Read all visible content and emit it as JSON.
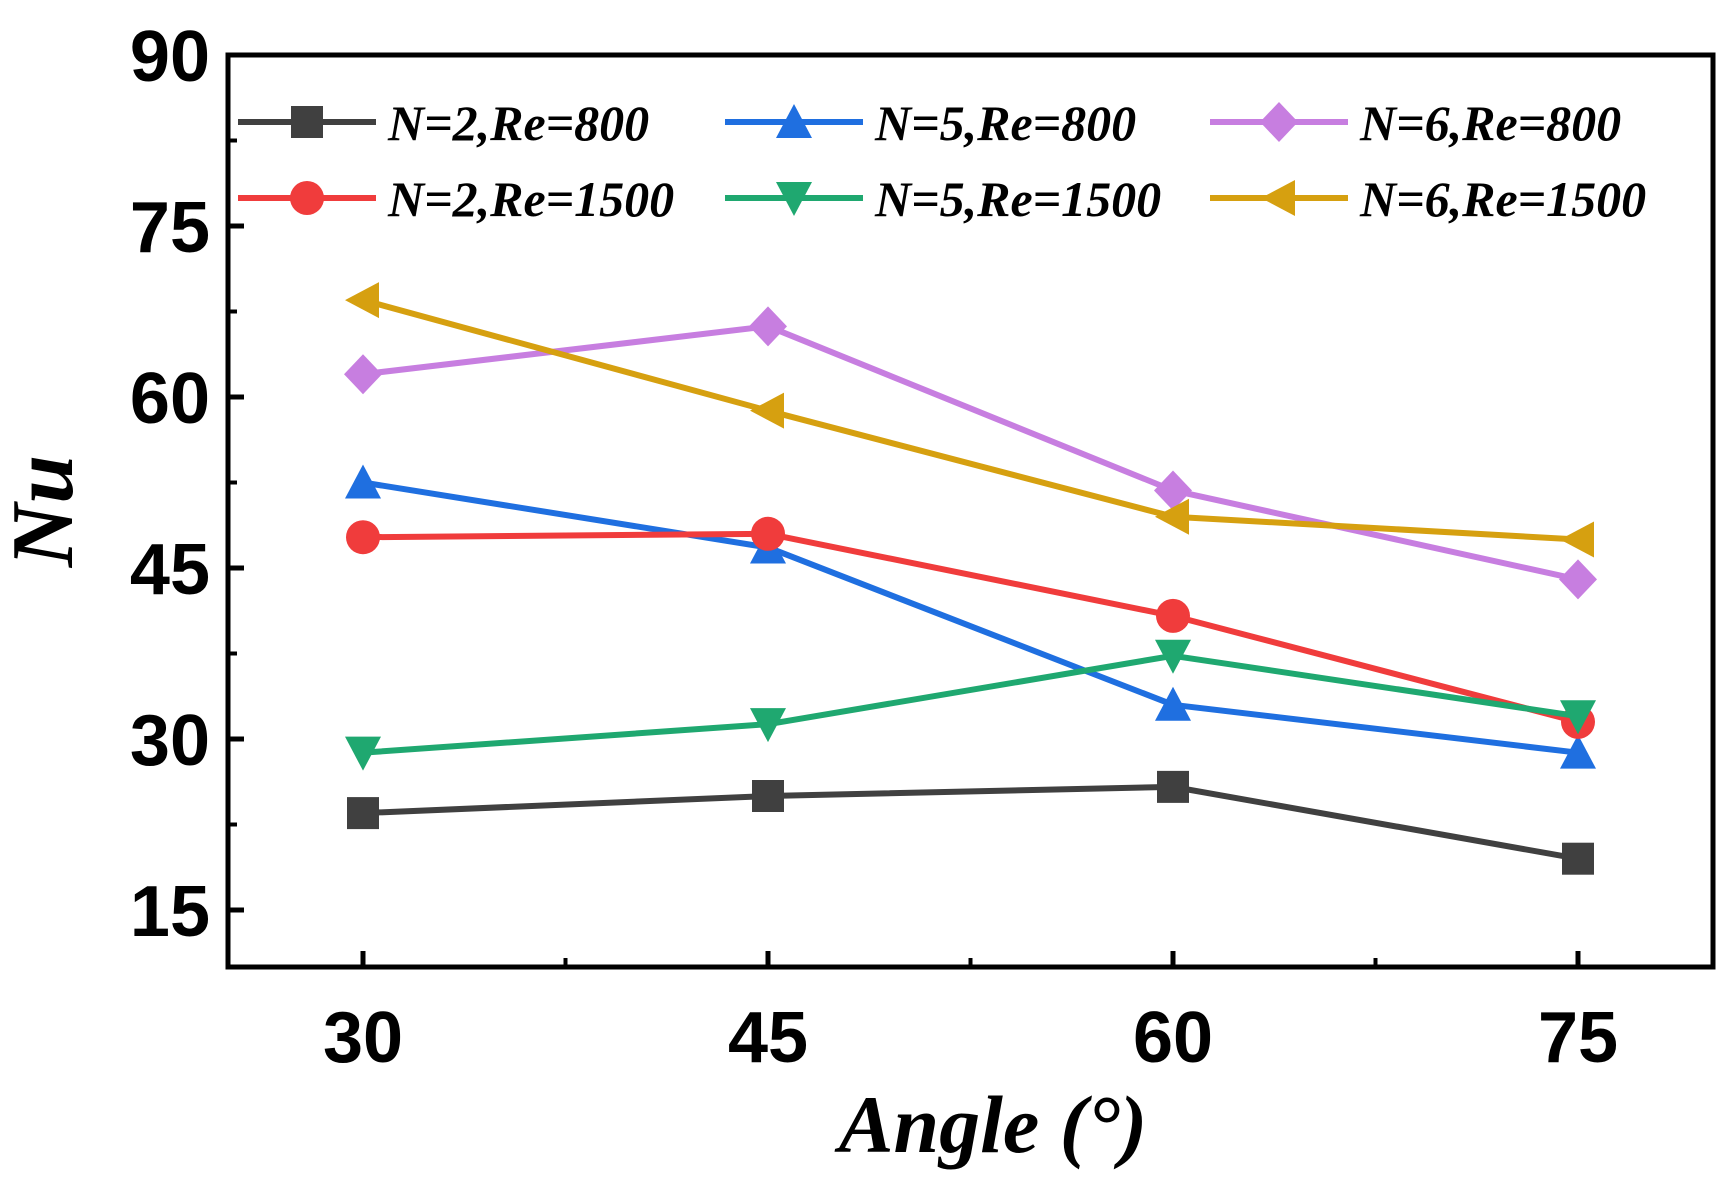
{
  "chart_data": {
    "type": "line",
    "title": "",
    "xlabel": "Angle (°)",
    "ylabel": "Nu",
    "x": [
      30,
      45,
      60,
      75
    ],
    "xlim": [
      25,
      80
    ],
    "ylim": [
      10,
      90
    ],
    "xticks": [
      "30",
      "45",
      "60",
      "75"
    ],
    "yticks": [
      "15",
      "30",
      "45",
      "60",
      "75",
      "90"
    ],
    "grid": false,
    "legend_position": "top",
    "series": [
      {
        "name": "N=2,Re=800",
        "color": "#404040",
        "marker": "square",
        "values": [
          23.5,
          25.0,
          25.8,
          19.5
        ]
      },
      {
        "name": "N=5,Re=800",
        "color": "#1f6fe0",
        "marker": "triangle-up",
        "values": [
          52.5,
          46.8,
          33.0,
          28.8
        ]
      },
      {
        "name": "N=6,Re=800",
        "color": "#c77ee0",
        "marker": "diamond",
        "values": [
          62.0,
          66.2,
          51.8,
          44.0
        ]
      },
      {
        "name": "N=2,Re=1500",
        "color": "#f03c3c",
        "marker": "circle",
        "values": [
          47.7,
          48.0,
          40.8,
          31.5
        ]
      },
      {
        "name": "N=5,Re=1500",
        "color": "#1fa870",
        "marker": "triangle-down",
        "values": [
          28.8,
          31.3,
          37.3,
          32.0
        ]
      },
      {
        "name": "N=6,Re=1500",
        "color": "#d6a010",
        "marker": "triangle-left",
        "values": [
          68.5,
          58.8,
          49.5,
          47.5
        ]
      }
    ]
  }
}
